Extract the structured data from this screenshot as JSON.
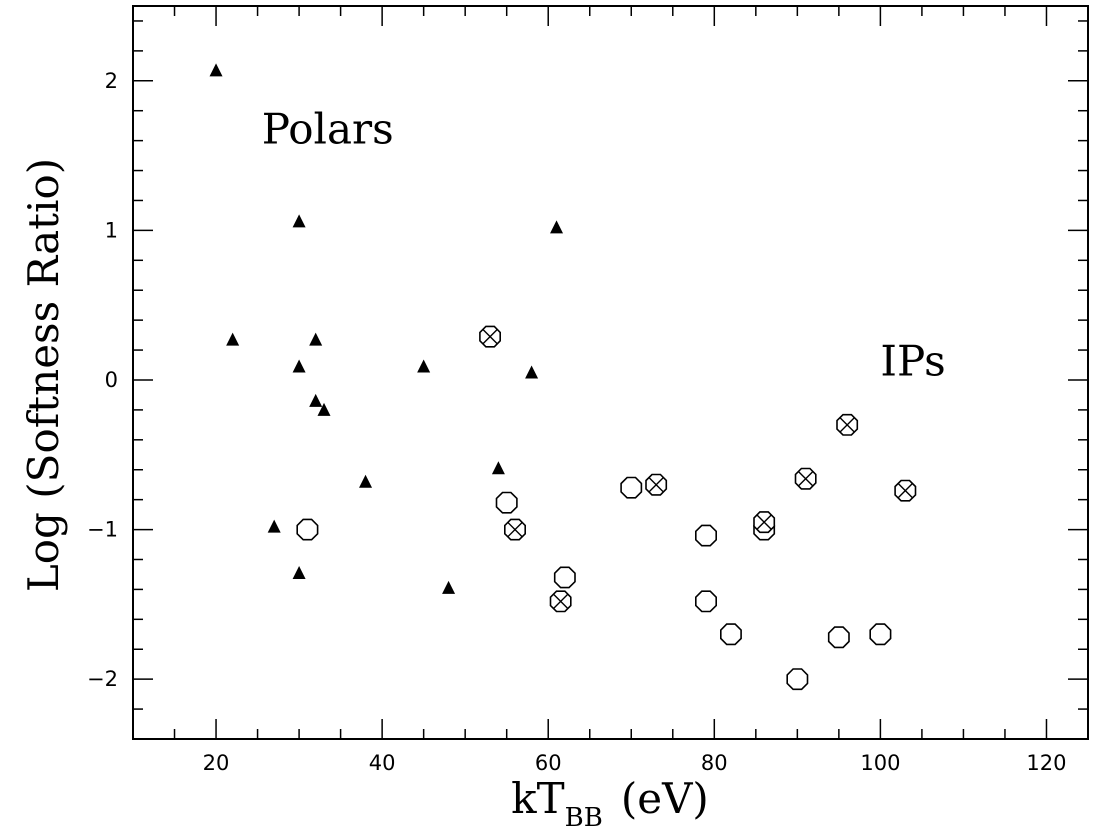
{
  "chart_data": {
    "type": "scatter",
    "xlabel": "kT",
    "xlabel_subscript": "BB",
    "xlabel_unit": "(eV)",
    "ylabel": "Log (Softness Ratio)",
    "xlim": [
      10,
      125
    ],
    "ylim": [
      -2.4,
      2.5
    ],
    "x_ticks": [
      20,
      40,
      60,
      80,
      100,
      120
    ],
    "x_tick_labels": [
      "20",
      "40",
      "60",
      "80",
      "100",
      "120"
    ],
    "y_ticks": [
      -2,
      -1,
      0,
      1,
      2
    ],
    "y_tick_labels": [
      "−2",
      "−1",
      "0",
      "1",
      "2"
    ],
    "grid": false,
    "annotations": [
      {
        "text": "Polars",
        "x": 25.5,
        "y": 1.58
      },
      {
        "text": "IPs",
        "x": 100,
        "y": 0.03
      }
    ],
    "series": [
      {
        "marker": "triangle-filled",
        "points": [
          [
            20,
            2.07
          ],
          [
            22,
            0.27
          ],
          [
            27,
            -0.98
          ],
          [
            30,
            1.06
          ],
          [
            30,
            0.09
          ],
          [
            30,
            -1.29
          ],
          [
            32,
            0.27
          ],
          [
            32,
            -0.14
          ],
          [
            33,
            -0.2
          ],
          [
            38,
            -0.68
          ],
          [
            45,
            0.09
          ],
          [
            48,
            -1.39
          ],
          [
            54,
            -0.59
          ],
          [
            58,
            0.05
          ],
          [
            61,
            1.02
          ]
        ]
      },
      {
        "marker": "octagon-open",
        "points": [
          [
            31,
            -1.0
          ],
          [
            55,
            -0.82
          ],
          [
            62,
            -1.32
          ],
          [
            70,
            -0.72
          ],
          [
            79,
            -1.04
          ],
          [
            79,
            -1.48
          ],
          [
            82,
            -1.7
          ],
          [
            86,
            -1.0
          ],
          [
            90,
            -2.0
          ],
          [
            95,
            -1.72
          ],
          [
            100,
            -1.7
          ]
        ]
      },
      {
        "marker": "octagon-cross",
        "points": [
          [
            53,
            0.29
          ],
          [
            56,
            -1.0
          ],
          [
            61.5,
            -1.48
          ],
          [
            73,
            -0.7
          ],
          [
            86,
            -0.95
          ],
          [
            91,
            -0.66
          ],
          [
            96,
            -0.3
          ],
          [
            103,
            -0.74
          ]
        ]
      }
    ]
  }
}
